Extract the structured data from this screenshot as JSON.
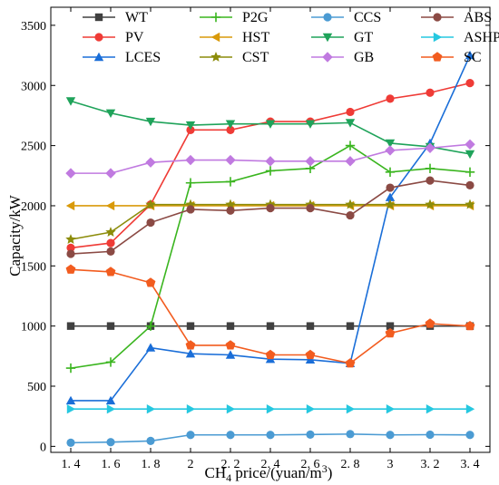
{
  "chart_data": {
    "type": "line",
    "xlabel": "CH4 price/(yuan/m3)",
    "xlabel_parts": {
      "base": "CH",
      "sub": "4",
      "mid": " price/(yuan/m",
      "sup": "3",
      "end": ")"
    },
    "ylabel": "Capacity/kW",
    "x": [
      1.4,
      1.6,
      1.8,
      2.0,
      2.2,
      2.4,
      2.6,
      2.8,
      3.0,
      3.2,
      3.4
    ],
    "x_tick_labels": [
      "1. 4",
      "1. 6",
      "1. 8",
      "2",
      "2. 2",
      "2. 4",
      "2. 6",
      "2. 8",
      "3",
      "3. 2",
      "3. 4"
    ],
    "xlim": [
      1.3,
      3.5
    ],
    "ylim": [
      -50,
      3650
    ],
    "y_ticks": [
      0,
      500,
      1000,
      1500,
      2000,
      2500,
      3000,
      3500
    ],
    "y_tick_labels": [
      "0",
      "500",
      "1000",
      "1500",
      "2000",
      "2500",
      "3000",
      "3500"
    ],
    "grid": false,
    "legend_position": "top",
    "series": [
      {
        "name": "WT",
        "color": "#404040",
        "marker": "square",
        "values": [
          1000,
          1000,
          1000,
          1000,
          1000,
          1000,
          1000,
          1000,
          1000,
          1000,
          1000
        ]
      },
      {
        "name": "PV",
        "color": "#ef3b36",
        "marker": "circle",
        "values": [
          1650,
          1690,
          2010,
          2630,
          2630,
          2700,
          2700,
          2780,
          2890,
          2940,
          3020
        ]
      },
      {
        "name": "LCES",
        "color": "#1a6ed8",
        "marker": "triangle-up",
        "values": [
          380,
          380,
          820,
          770,
          760,
          725,
          720,
          690,
          2070,
          2520,
          3250
        ]
      },
      {
        "name": "P2G",
        "color": "#3ab51f",
        "marker": "plus",
        "values": [
          650,
          700,
          1000,
          2190,
          2200,
          2290,
          2310,
          2500,
          2280,
          2310,
          2280
        ]
      },
      {
        "name": "HST",
        "color": "#d99a0a",
        "marker": "triangle-left",
        "values": [
          2000,
          2000,
          2000,
          2000,
          2000,
          2000,
          2000,
          2000,
          2000,
          2000,
          2000
        ]
      },
      {
        "name": "CST",
        "color": "#8c8c0a",
        "marker": "star",
        "values": [
          1720,
          1780,
          2010,
          2010,
          2010,
          2010,
          2010,
          2010,
          2010,
          2010,
          2010
        ]
      },
      {
        "name": "CCS",
        "color": "#4b9bd3",
        "marker": "circle",
        "values": [
          30,
          35,
          45,
          95,
          95,
          95,
          98,
          102,
          95,
          97,
          95
        ]
      },
      {
        "name": "GT",
        "color": "#1fa35a",
        "marker": "triangle-down",
        "values": [
          2870,
          2770,
          2700,
          2670,
          2680,
          2680,
          2680,
          2690,
          2520,
          2490,
          2430
        ]
      },
      {
        "name": "GB",
        "color": "#c07ae0",
        "marker": "diamond",
        "values": [
          2270,
          2270,
          2360,
          2380,
          2380,
          2370,
          2370,
          2370,
          2460,
          2480,
          2510
        ]
      },
      {
        "name": "ABS",
        "color": "#8b4a44",
        "marker": "circle",
        "values": [
          1600,
          1620,
          1860,
          1970,
          1960,
          1980,
          1980,
          1920,
          2150,
          2210,
          2170
        ]
      },
      {
        "name": "ASHP",
        "color": "#26c8e0",
        "marker": "triangle-right",
        "values": [
          310,
          310,
          310,
          310,
          310,
          310,
          310,
          310,
          310,
          310,
          310
        ]
      },
      {
        "name": "SC",
        "color": "#f25c1f",
        "marker": "pentagon",
        "values": [
          1470,
          1450,
          1360,
          840,
          840,
          760,
          760,
          690,
          940,
          1020,
          1000
        ]
      }
    ]
  }
}
